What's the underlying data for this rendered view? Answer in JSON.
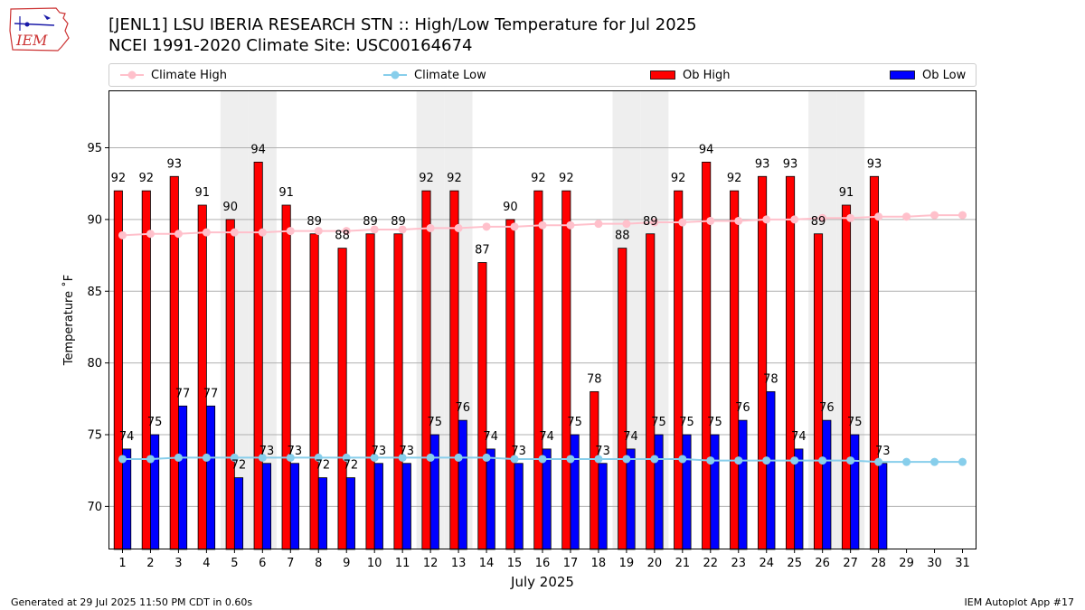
{
  "logo": {
    "text": "IEM",
    "color": "#cc3333"
  },
  "title_line1": "[JENL1] LSU IBERIA RESEARCH STN :: High/Low Temperature for Jul 2025",
  "title_line2": "NCEI 1991-2020 Climate Site: USC00164674",
  "footer_left": "Generated at 29 Jul 2025 11:50 PM CDT in 0.60s",
  "footer_right": "IEM Autoplot App #17",
  "colors": {
    "ob_high": "#ff0000",
    "ob_low": "#0000ff",
    "climate_high": "#ffc0cb",
    "climate_low": "#87ceeb",
    "weekend_shade": "#eeeeee",
    "grid": "#b0b0b0"
  },
  "legend": {
    "climate_high": "Climate High",
    "climate_low": "Climate Low",
    "ob_high": "Ob High",
    "ob_low": "Ob Low"
  },
  "chart_data": {
    "type": "bar",
    "xlabel": "July 2025",
    "ylabel": "Temperature ˚F",
    "ylim": [
      67,
      99
    ],
    "yticks": [
      70,
      75,
      80,
      85,
      90,
      95
    ],
    "grid": true,
    "legend_position": "top",
    "categories": [
      "1",
      "2",
      "3",
      "4",
      "5",
      "6",
      "7",
      "8",
      "9",
      "10",
      "11",
      "12",
      "13",
      "14",
      "15",
      "16",
      "17",
      "18",
      "19",
      "20",
      "21",
      "22",
      "23",
      "24",
      "25",
      "26",
      "27",
      "28",
      "29",
      "30",
      "31"
    ],
    "shaded_days": [
      5,
      6,
      12,
      13,
      19,
      20,
      26,
      27
    ],
    "series": [
      {
        "name": "Ob High",
        "kind": "bar",
        "values": [
          92,
          92,
          93,
          91,
          90,
          94,
          91,
          89,
          88,
          89,
          89,
          92,
          92,
          87,
          90,
          92,
          92,
          78,
          88,
          89,
          92,
          94,
          92,
          93,
          93,
          89,
          91,
          93,
          null,
          null,
          null
        ]
      },
      {
        "name": "Ob Low",
        "kind": "bar",
        "values": [
          74,
          75,
          77,
          77,
          72,
          73,
          73,
          72,
          72,
          73,
          73,
          75,
          76,
          74,
          73,
          74,
          75,
          73,
          74,
          75,
          75,
          75,
          76,
          78,
          74,
          76,
          75,
          73,
          null,
          null,
          null
        ]
      },
      {
        "name": "Climate High",
        "kind": "line",
        "values": [
          88.9,
          89.0,
          89.0,
          89.1,
          89.1,
          89.1,
          89.2,
          89.2,
          89.2,
          89.3,
          89.3,
          89.4,
          89.4,
          89.5,
          89.5,
          89.6,
          89.6,
          89.7,
          89.7,
          89.8,
          89.8,
          89.9,
          89.9,
          90.0,
          90.0,
          90.1,
          90.1,
          90.2,
          90.2,
          90.3,
          90.3
        ]
      },
      {
        "name": "Climate Low",
        "kind": "line",
        "values": [
          73.3,
          73.3,
          73.4,
          73.4,
          73.4,
          73.4,
          73.4,
          73.4,
          73.4,
          73.4,
          73.4,
          73.4,
          73.4,
          73.4,
          73.3,
          73.3,
          73.3,
          73.3,
          73.3,
          73.3,
          73.3,
          73.2,
          73.2,
          73.2,
          73.2,
          73.2,
          73.2,
          73.1,
          73.1,
          73.1,
          73.1
        ]
      }
    ]
  }
}
